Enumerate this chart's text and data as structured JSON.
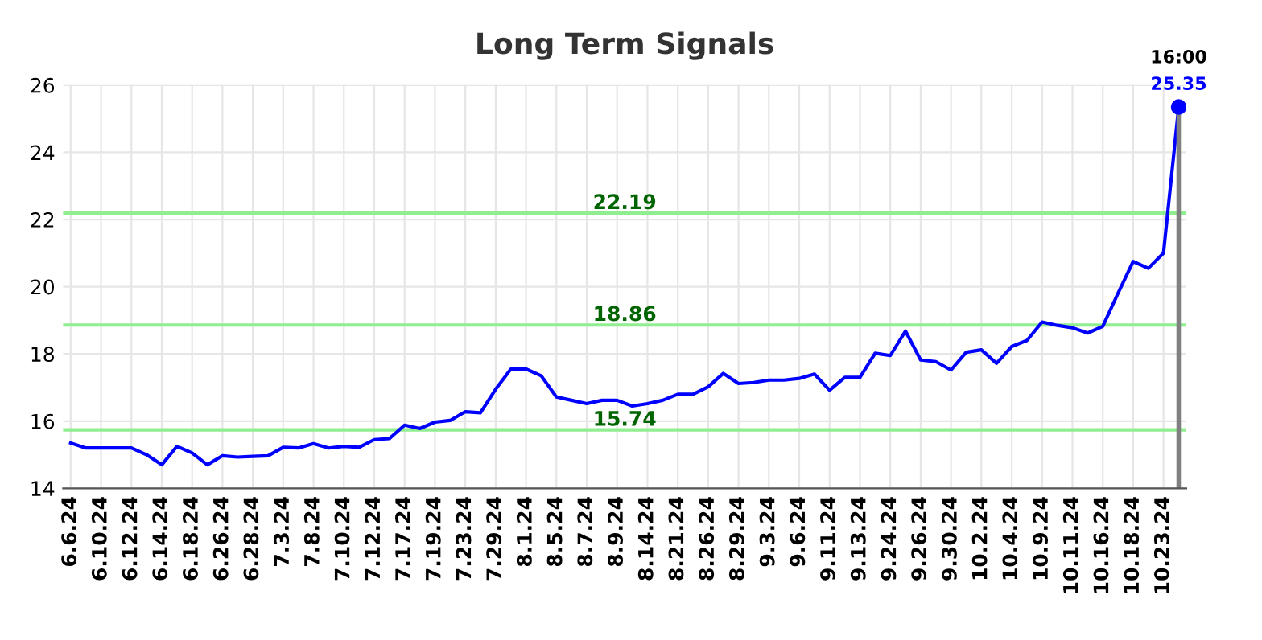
{
  "chart_data": {
    "type": "line",
    "title": "Long Term Signals",
    "categories": [
      "6.6.24",
      null,
      "6.10.24",
      null,
      "6.12.24",
      null,
      "6.14.24",
      null,
      "6.18.24",
      null,
      "6.26.24",
      null,
      "6.28.24",
      null,
      "7.3.24",
      null,
      "7.8.24",
      null,
      "7.10.24",
      null,
      "7.12.24",
      null,
      "7.17.24",
      null,
      "7.19.24",
      null,
      "7.23.24",
      null,
      "7.29.24",
      null,
      "8.1.24",
      null,
      "8.5.24",
      null,
      "8.7.24",
      null,
      "8.9.24",
      null,
      "8.14.24",
      null,
      "8.21.24",
      null,
      "8.26.24",
      null,
      "8.29.24",
      null,
      "9.3.24",
      null,
      "9.6.24",
      null,
      "9.11.24",
      null,
      "9.13.24",
      null,
      "9.24.24",
      null,
      "9.26.24",
      null,
      "9.30.24",
      null,
      "10.2.24",
      null,
      "10.4.24",
      null,
      "10.9.24",
      null,
      "10.11.24",
      null,
      "10.16.24",
      null,
      "10.18.24",
      null,
      "10.23.24",
      null
    ],
    "series": [
      {
        "color": "#0000ff",
        "values": [
          15.35,
          15.2,
          15.2,
          15.2,
          15.2,
          15.0,
          14.7,
          15.25,
          15.05,
          14.7,
          14.97,
          14.93,
          14.95,
          14.97,
          15.22,
          15.2,
          15.33,
          15.2,
          15.25,
          15.22,
          15.45,
          15.48,
          15.88,
          15.78,
          15.97,
          16.02,
          16.28,
          16.25,
          16.95,
          17.55,
          17.55,
          17.35,
          16.72,
          16.62,
          16.52,
          16.62,
          16.62,
          16.45,
          16.52,
          16.62,
          16.8,
          16.8,
          17.02,
          17.42,
          17.12,
          17.15,
          17.22,
          17.22,
          17.27,
          17.4,
          16.92,
          17.3,
          17.3,
          18.02,
          17.95,
          18.68,
          17.82,
          17.77,
          17.52,
          18.05,
          18.12,
          17.72,
          18.22,
          18.4,
          18.95,
          18.85,
          18.78,
          18.62,
          18.82,
          19.8,
          20.75,
          20.55,
          21.0,
          25.35
        ],
        "value_labels": [
          null,
          null,
          null,
          null,
          null,
          null,
          null,
          null,
          null,
          null,
          null,
          null,
          null,
          null,
          null,
          null,
          null,
          null,
          null,
          null,
          null,
          null,
          null,
          null,
          null,
          null,
          null,
          null,
          null,
          null,
          null,
          null,
          null,
          null,
          null,
          null,
          null,
          null,
          null,
          null,
          null,
          null,
          null,
          null,
          null,
          null,
          null,
          null,
          null,
          null,
          null,
          null,
          null,
          null,
          null,
          null,
          null,
          null,
          null,
          null,
          null,
          null,
          null,
          null,
          null,
          null,
          null,
          null,
          null,
          null,
          null,
          null,
          null,
          "25.35"
        ]
      }
    ],
    "ylim": [
      14,
      26
    ],
    "yticks": [
      14,
      16,
      18,
      20,
      22,
      24,
      26
    ],
    "grid": true,
    "ref_lines": [
      {
        "axis": "y",
        "value": 22.19,
        "label": "22.19",
        "color": "#90ee90"
      },
      {
        "axis": "y",
        "value": 18.86,
        "label": "18.86",
        "color": "#90ee90"
      },
      {
        "axis": "y",
        "value": 15.74,
        "label": "15.74",
        "color": "#90ee90"
      }
    ],
    "annotations": [
      {
        "text": "16:00",
        "y": 25.35
      }
    ]
  }
}
